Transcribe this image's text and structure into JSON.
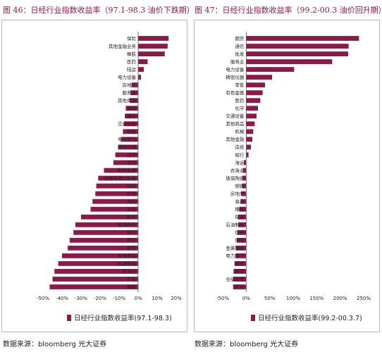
{
  "titles": {
    "left": "图 46：日经行业指数收益率（97.1-98.3 油价下跌期）",
    "right": "图 47：日经行业指数收益率（99.2-00.3 油价回升期）"
  },
  "sources": {
    "left": "数据来源：bloomberg 光大证券",
    "right": "数据来源：bloomberg 光大证券"
  },
  "colors": {
    "bar": "#8b1a4a",
    "axis": "#555555",
    "title": "#8b1a4a"
  },
  "chart_data": [
    {
      "type": "bar",
      "orientation": "horizontal",
      "xlim": [
        -50,
        20
      ],
      "ticks": [
        -50,
        -40,
        -30,
        -20,
        -10,
        0,
        10,
        20
      ],
      "tick_labels": [
        "-50%",
        "-40%",
        "-30%",
        "-20%",
        "-10%",
        "0%",
        "10%",
        "20%"
      ],
      "legend": "日经行业指数收益率(97.1-98.3)",
      "categories": [
        "保险",
        "其他金融业务",
        "橡胶",
        "医药",
        "陆运",
        "电力设备",
        "房地产",
        "服务业",
        "其他商品",
        "食品",
        "通信",
        "交通设备",
        "零售",
        "电力煤气",
        "精密仪器",
        "化学",
        "造纸",
        "有色金属",
        "仓储及港口运输",
        "纺织",
        "机械",
        "海运",
        "批发",
        "航空",
        "玻璃陶瓷",
        "银行",
        "期货",
        "建筑",
        "金属制品",
        "石油制品",
        "农渔业",
        "矿业",
        "钢铁"
      ],
      "values": [
        16,
        15.5,
        14,
        5,
        3,
        1.5,
        -3.5,
        -4,
        -4.5,
        -6.5,
        -7,
        -7.5,
        -8,
        -9,
        -10.5,
        -12,
        -13,
        -18,
        -21,
        -22,
        -22.5,
        -24,
        -25,
        -30,
        -33,
        -34,
        -36,
        -37,
        -40,
        -42,
        -44,
        -45,
        -46.5
      ]
    },
    {
      "type": "bar",
      "orientation": "horizontal",
      "xlim": [
        -50,
        250
      ],
      "ticks": [
        -50,
        0,
        50,
        100,
        150,
        200,
        250
      ],
      "tick_labels": [
        "-50%",
        "0%",
        "50%",
        "100%",
        "150%",
        "200%",
        "250%"
      ],
      "legend": "日经行业指数收益率(99.2-00.3.7)",
      "categories": [
        "期货",
        "通信",
        "批发",
        "服务业",
        "电力设备",
        "精密仪器",
        "零售",
        "有色金属",
        "医药",
        "化学",
        "交通设备",
        "其他商品",
        "机械",
        "其他金融",
        "造纸",
        "银行",
        "海运",
        "农渔业",
        "玻璃陶瓷",
        "钢铁",
        "房地产",
        "食品",
        "橡胶",
        "陆运",
        "石油制品",
        "纺织",
        "保险",
        "金属制品",
        "电力煤气",
        "建筑",
        "航空",
        "仓储及港",
        "矿业"
      ],
      "values": [
        240,
        218,
        217,
        183,
        102,
        55,
        40,
        35,
        30,
        25,
        22,
        18,
        15,
        13,
        10,
        5,
        -5,
        -7,
        -8,
        -9,
        -11,
        -12,
        -15,
        -17,
        -17,
        -19,
        -20,
        -22,
        -23,
        -25,
        -27,
        -28,
        -28
      ]
    }
  ]
}
